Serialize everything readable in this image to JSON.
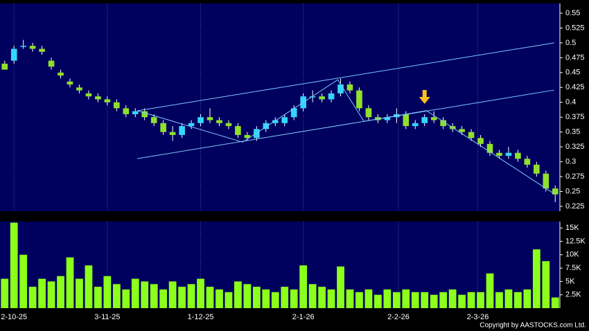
{
  "chart_data": {
    "type": "candlestick",
    "up_color": "#33d6ff",
    "down_color": "#8fe02a",
    "volume_color": "#8cff1a",
    "line_color": "#7fc8ff",
    "arrow_color": "#ffc21a",
    "open": [
      0.465,
      0.47,
      0.495,
      0.495,
      0.49,
      0.47,
      0.45,
      0.435,
      0.425,
      0.415,
      0.41,
      0.405,
      0.4,
      0.39,
      0.38,
      0.385,
      0.375,
      0.365,
      0.35,
      0.345,
      0.36,
      0.365,
      0.375,
      0.37,
      0.365,
      0.36,
      0.345,
      0.34,
      0.355,
      0.365,
      0.365,
      0.375,
      0.39,
      0.41,
      0.41,
      0.405,
      0.415,
      0.43,
      0.42,
      0.39,
      0.375,
      0.37,
      0.375,
      0.38,
      0.36,
      0.365,
      0.375,
      0.37,
      0.36,
      0.355,
      0.35,
      0.34,
      0.33,
      0.315,
      0.31,
      0.315,
      0.305,
      0.295,
      0.28,
      0.255
    ],
    "high": [
      0.47,
      0.495,
      0.505,
      0.5,
      0.495,
      0.475,
      0.455,
      0.44,
      0.43,
      0.42,
      0.415,
      0.41,
      0.405,
      0.395,
      0.39,
      0.39,
      0.38,
      0.37,
      0.36,
      0.365,
      0.37,
      0.38,
      0.39,
      0.375,
      0.37,
      0.365,
      0.35,
      0.36,
      0.37,
      0.375,
      0.38,
      0.395,
      0.415,
      0.42,
      0.415,
      0.42,
      0.44,
      0.435,
      0.425,
      0.395,
      0.38,
      0.38,
      0.39,
      0.385,
      0.37,
      0.38,
      0.385,
      0.375,
      0.365,
      0.36,
      0.355,
      0.345,
      0.335,
      0.32,
      0.325,
      0.32,
      0.31,
      0.3,
      0.285,
      0.26
    ],
    "low": [
      0.455,
      0.465,
      0.49,
      0.485,
      0.48,
      0.455,
      0.44,
      0.425,
      0.415,
      0.405,
      0.4,
      0.395,
      0.385,
      0.375,
      0.375,
      0.37,
      0.36,
      0.345,
      0.335,
      0.34,
      0.355,
      0.36,
      0.365,
      0.36,
      0.355,
      0.34,
      0.335,
      0.335,
      0.35,
      0.36,
      0.36,
      0.37,
      0.385,
      0.4,
      0.4,
      0.4,
      0.41,
      0.415,
      0.385,
      0.37,
      0.365,
      0.365,
      0.365,
      0.355,
      0.355,
      0.36,
      0.365,
      0.355,
      0.35,
      0.345,
      0.335,
      0.325,
      0.31,
      0.305,
      0.305,
      0.3,
      0.29,
      0.275,
      0.25,
      0.232
    ],
    "close": [
      0.455,
      0.49,
      0.495,
      0.49,
      0.485,
      0.46,
      0.445,
      0.43,
      0.42,
      0.41,
      0.405,
      0.4,
      0.39,
      0.38,
      0.385,
      0.375,
      0.365,
      0.35,
      0.345,
      0.36,
      0.365,
      0.375,
      0.37,
      0.365,
      0.36,
      0.345,
      0.34,
      0.355,
      0.365,
      0.37,
      0.375,
      0.39,
      0.41,
      0.41,
      0.405,
      0.415,
      0.43,
      0.42,
      0.39,
      0.375,
      0.37,
      0.375,
      0.38,
      0.36,
      0.365,
      0.375,
      0.37,
      0.36,
      0.355,
      0.35,
      0.34,
      0.33,
      0.315,
      0.31,
      0.315,
      0.305,
      0.295,
      0.28,
      0.255,
      0.245
    ],
    "volume": [
      5500,
      16000,
      10000,
      4000,
      5500,
      5000,
      6000,
      9500,
      5500,
      8000,
      4000,
      6000,
      4500,
      3500,
      5500,
      5000,
      4500,
      3500,
      5000,
      4000,
      4500,
      5500,
      4000,
      3500,
      3000,
      5000,
      4500,
      4000,
      3500,
      3000,
      4000,
      3500,
      8000,
      4500,
      4000,
      3500,
      7800,
      3500,
      3000,
      3500,
      2500,
      3500,
      3000,
      3500,
      3000,
      3000,
      2500,
      3000,
      3500,
      2500,
      3000,
      3000,
      6500,
      3000,
      3500,
      3000,
      3500,
      11000,
      8800,
      2000
    ],
    "xticks": [
      {
        "value": 1,
        "label": "2-10-25"
      },
      {
        "value": 11,
        "label": "3-11-25"
      },
      {
        "value": 21,
        "label": "1-12-25"
      },
      {
        "value": 32,
        "label": "2-1-26"
      },
      {
        "value": 42.2,
        "label": "2-2-26"
      },
      {
        "value": 50.7,
        "label": "2-3-26"
      }
    ],
    "xlim": [
      -0.5,
      59.5
    ],
    "ylim": [
      0.2168,
      0.5663
    ],
    "yticks": [
      0.225,
      0.25,
      0.275,
      0.3,
      0.325,
      0.35,
      0.375,
      0.4,
      0.425,
      0.45,
      0.475,
      0.5,
      0.525,
      0.55
    ],
    "y2lim": [
      0,
      16200
    ],
    "y2ticks": [
      {
        "value": 2500,
        "label": "2.5K"
      },
      {
        "value": 5000,
        "label": "5K"
      },
      {
        "value": 7500,
        "label": "7.5K"
      },
      {
        "value": 10000,
        "label": "10K"
      },
      {
        "value": 12500,
        "label": "12.5K"
      },
      {
        "value": 15000,
        "label": "15K"
      }
    ],
    "lines": [
      {
        "x": [
          14.2,
          58.9
        ],
        "y": [
          0.3857,
          0.5
        ]
      },
      {
        "x": [
          14.2,
          58.9
        ],
        "y": [
          0.3052,
          0.4206
        ]
      },
      {
        "x": [
          14.2,
          25.5,
          35.7,
          38.5,
          45.2,
          58.9
        ],
        "y": [
          0.386,
          0.333,
          0.438,
          0.368,
          0.386,
          0.246
        ]
      }
    ],
    "arrow": {
      "x": 45,
      "y": 0.395
    },
    "grid": true,
    "copyright": "Copyright by AASTOCKS.com Ltd."
  }
}
